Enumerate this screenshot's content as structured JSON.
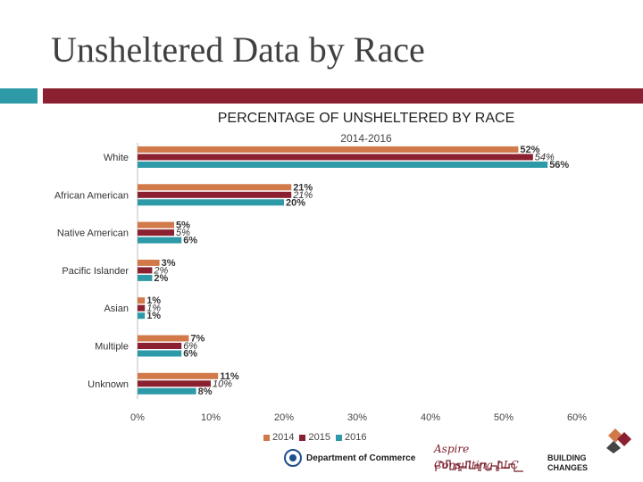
{
  "slide": {
    "title": "Unsheltered Data by Race"
  },
  "colors": {
    "accent_teal": "#2e9aa8",
    "accent_red": "#8b2130"
  },
  "chart_data": {
    "type": "bar",
    "orientation": "horizontal",
    "title": "PERCENTAGE OF UNSHELTERED BY RACE",
    "subtitle": "2014-2016",
    "categories": [
      "White",
      "African American",
      "Native American",
      "Pacific Islander",
      "Asian",
      "Multiple",
      "Unknown"
    ],
    "series": [
      {
        "name": "2014",
        "color": "#d2794a",
        "values": [
          52,
          21,
          5,
          3,
          1,
          7,
          11
        ]
      },
      {
        "name": "2015",
        "color": "#8b2130",
        "values": [
          54,
          21,
          5,
          2,
          1,
          6,
          10
        ]
      },
      {
        "name": "2016",
        "color": "#2e9aa8",
        "values": [
          56,
          20,
          6,
          2,
          1,
          6,
          8
        ]
      }
    ],
    "xlim": [
      0,
      60
    ],
    "xticks": [
      "0%",
      "10%",
      "20%",
      "30%",
      "40%",
      "50%",
      "60%"
    ],
    "legend": "bottom"
  },
  "logos": {
    "commerce": "Department of Commerce",
    "aspire": "Aspire Consulting LLC",
    "building_changes": [
      "BUILDING",
      "CHANGES"
    ]
  }
}
